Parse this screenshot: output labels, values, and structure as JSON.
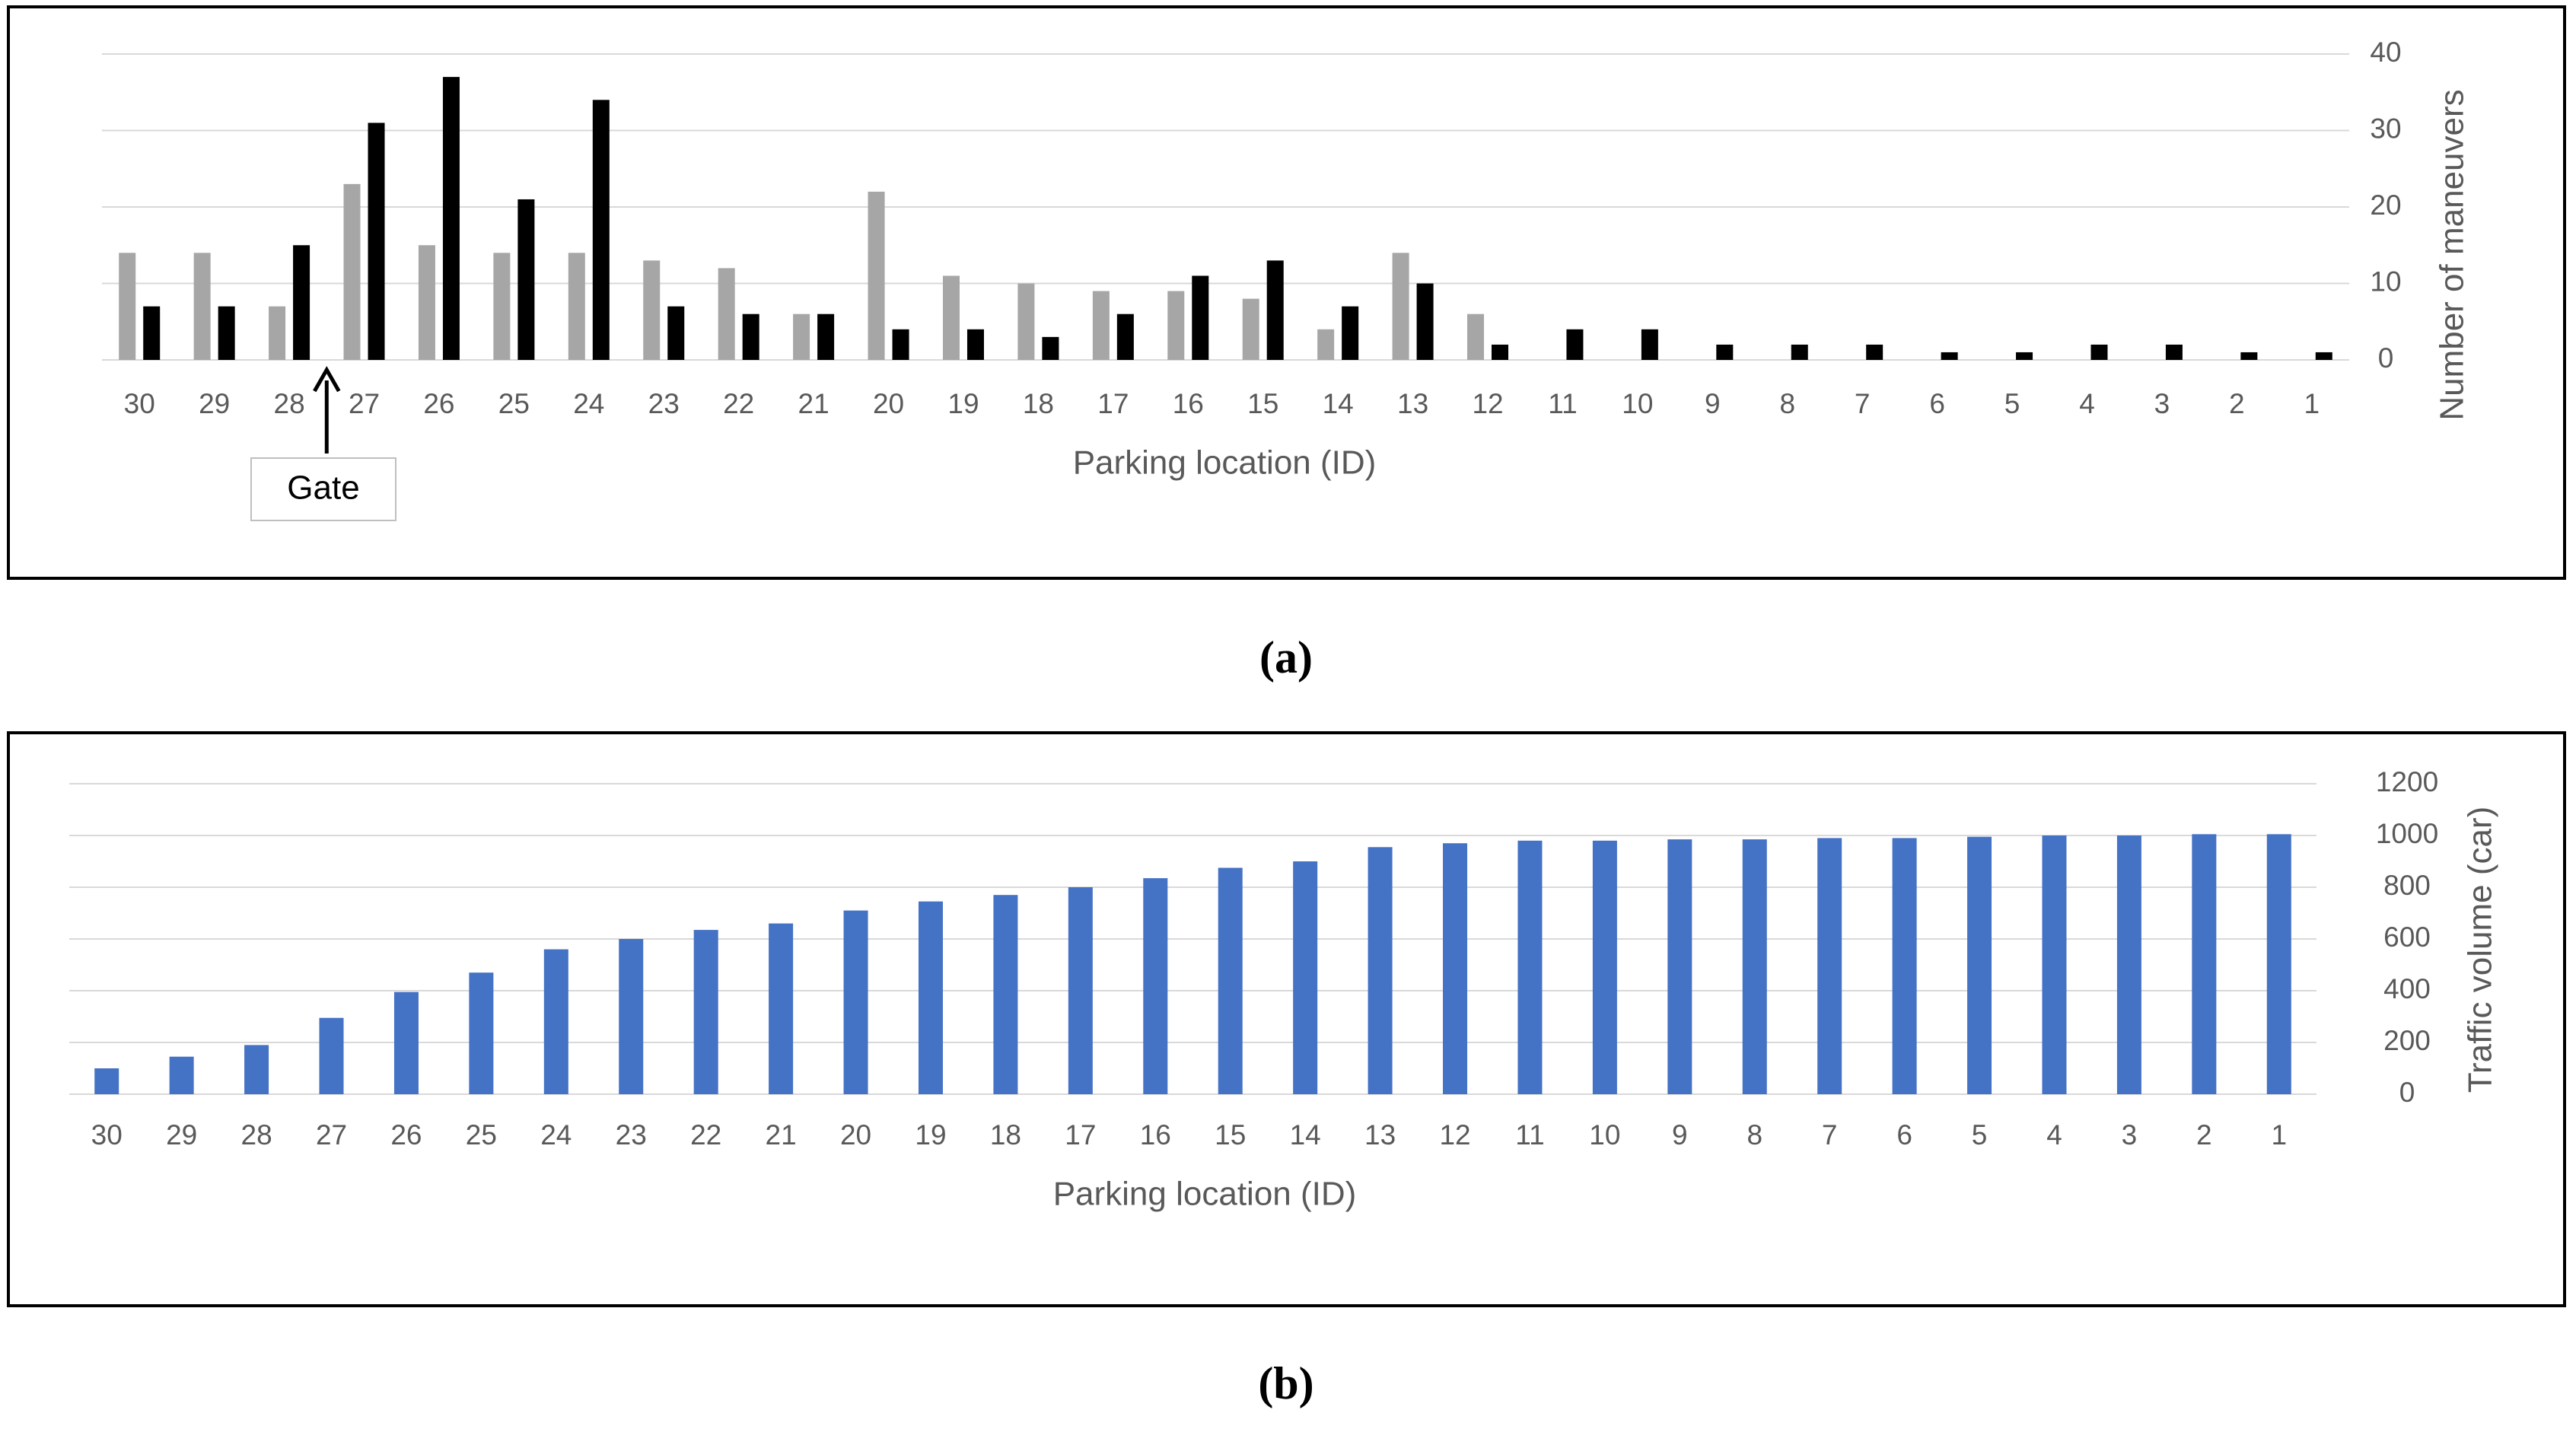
{
  "chart_data": [
    {
      "type": "bar",
      "categories": [
        "30",
        "29",
        "28",
        "27",
        "26",
        "25",
        "24",
        "23",
        "22",
        "21",
        "20",
        "19",
        "18",
        "17",
        "16",
        "15",
        "14",
        "13",
        "12",
        "11",
        "10",
        "9",
        "8",
        "7",
        "6",
        "5",
        "4",
        "3",
        "2",
        "1"
      ],
      "series": [
        {
          "color": "#a6a6a6",
          "values": [
            14,
            14,
            7,
            23,
            15,
            14,
            14,
            13,
            12,
            6,
            22,
            11,
            10,
            9,
            9,
            8,
            4,
            14,
            6,
            0,
            0,
            0,
            0,
            0,
            0,
            0,
            0,
            0,
            0,
            0
          ]
        },
        {
          "color": "#000000",
          "values": [
            7,
            7,
            15,
            31,
            37,
            21,
            34,
            7,
            6,
            6,
            4,
            4,
            3,
            6,
            11,
            13,
            7,
            10,
            2,
            4,
            4,
            2,
            2,
            2,
            1,
            1,
            2,
            2,
            1,
            1
          ]
        }
      ],
      "x_label": "Parking location (ID)",
      "y_label": "Number of maneuvers",
      "ylim": [
        0,
        40
      ],
      "yticks": [
        0,
        10,
        20,
        30,
        40
      ],
      "grid": true,
      "annotation": "Gate",
      "caption": "(a)"
    },
    {
      "type": "bar",
      "categories": [
        "30",
        "29",
        "28",
        "27",
        "26",
        "25",
        "24",
        "23",
        "22",
        "21",
        "20",
        "19",
        "18",
        "17",
        "16",
        "15",
        "14",
        "13",
        "12",
        "11",
        "10",
        "9",
        "8",
        "7",
        "6",
        "5",
        "4",
        "3",
        "2",
        "1"
      ],
      "series": [
        {
          "color": "#4472c4",
          "values": [
            100,
            145,
            190,
            295,
            395,
            470,
            560,
            600,
            635,
            660,
            710,
            745,
            770,
            800,
            835,
            875,
            900,
            955,
            970,
            980,
            980,
            985,
            985,
            990,
            990,
            995,
            1000,
            1000,
            1005,
            1005
          ]
        }
      ],
      "x_label": "Parking location (ID)",
      "y_label": "Traffic volume (car)",
      "ylim": [
        0,
        1200
      ],
      "yticks": [
        0,
        200,
        400,
        600,
        800,
        1000,
        1200
      ],
      "grid": true,
      "caption": "(b)"
    }
  ]
}
